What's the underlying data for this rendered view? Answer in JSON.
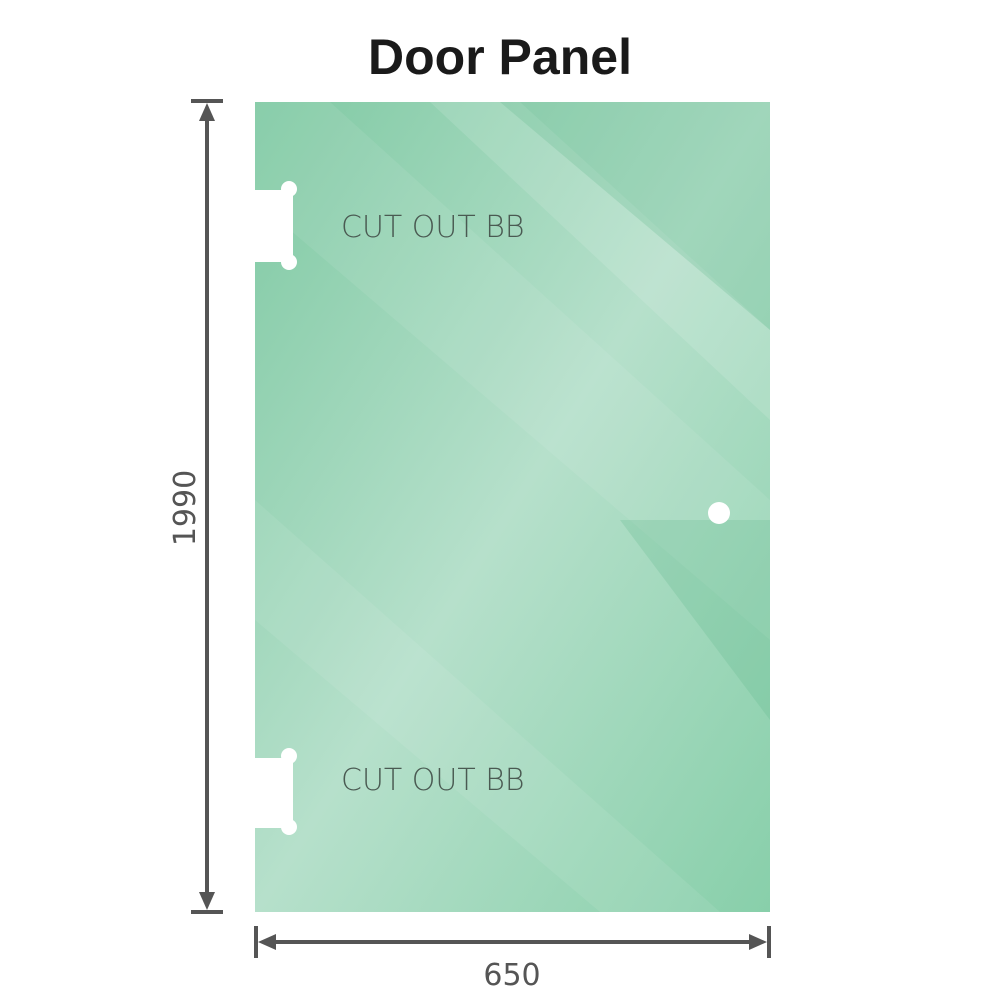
{
  "title": "Door Panel",
  "panel": {
    "cutout_labels": [
      "CUT OUT BB",
      "CUT OUT BB"
    ],
    "glass_color": "#86cda8"
  },
  "dimensions": {
    "height": "1990",
    "width": "650"
  }
}
